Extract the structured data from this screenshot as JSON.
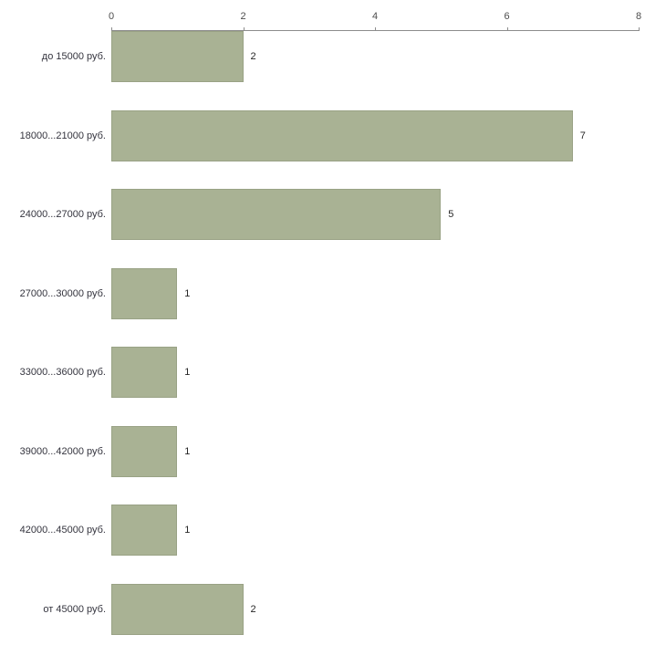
{
  "chart_data": {
    "type": "bar",
    "orientation": "horizontal",
    "title": "",
    "xlabel": "",
    "ylabel": "",
    "categories": [
      "до 15000 руб.",
      "18000...21000 руб.",
      "24000...27000 руб.",
      "27000...30000 руб.",
      "33000...36000 руб.",
      "39000...42000 руб.",
      "42000...45000 руб.",
      "от 45000 руб."
    ],
    "values": [
      2,
      7,
      5,
      1,
      1,
      1,
      1,
      2
    ],
    "xlim": [
      0,
      8
    ],
    "x_ticks": [
      0,
      2,
      4,
      6,
      8
    ],
    "axis_position": "top",
    "grid": false,
    "legend": false,
    "bar_color": "#a9b294",
    "bar_border_color": "#99a285",
    "axis_color": "#8c8c8c",
    "background_color": "#ffffff"
  }
}
